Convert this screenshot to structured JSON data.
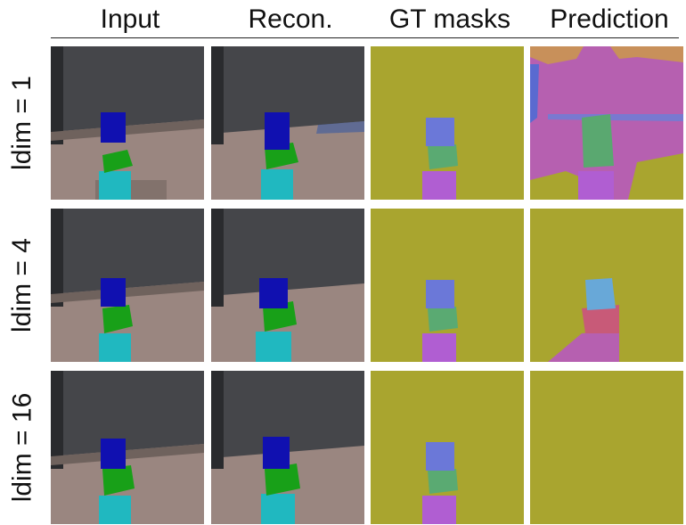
{
  "columns": [
    {
      "title": "Input"
    },
    {
      "title": "Recon."
    },
    {
      "title": "GT masks"
    },
    {
      "title": "Prediction"
    }
  ],
  "rows": [
    {
      "label": "ldim = 1"
    },
    {
      "label": "ldim = 4"
    },
    {
      "label": "ldim = 16"
    }
  ],
  "colors": {
    "wall": "#45464a",
    "floor": "#9a8680",
    "cube_top": "#1010b0",
    "cube_middle": "#18a018",
    "cube_bottom": "#20b8c0",
    "mask_background": "#a9a52f",
    "mask_top": "#6b78d8",
    "mask_middle": "#5aaa72",
    "mask_bottom": "#b05ed2",
    "pred_pink": "#b660b0",
    "pred_orange": "#c8905a",
    "pred_teal": "#5aa870",
    "pred_lightblue": "#68a8d8",
    "pred_red": "#c85a78"
  }
}
